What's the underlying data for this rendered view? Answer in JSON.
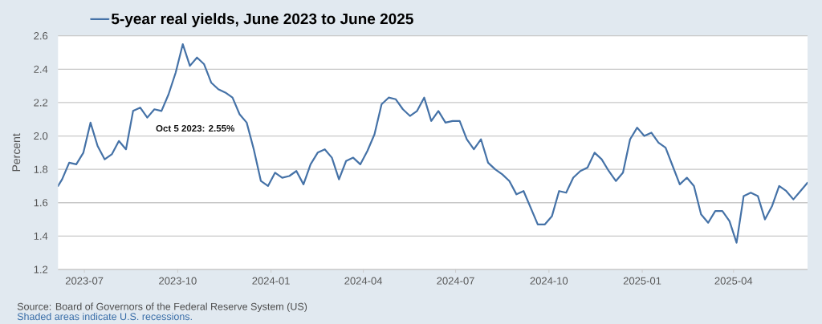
{
  "chart_data": {
    "type": "line",
    "ylabel": "Percent",
    "x": [
      "2023-06-05",
      "2023-06-09",
      "2023-06-16",
      "2023-06-23",
      "2023-06-30",
      "2023-07-07",
      "2023-07-14",
      "2023-07-21",
      "2023-07-28",
      "2023-08-04",
      "2023-08-11",
      "2023-08-18",
      "2023-08-25",
      "2023-09-01",
      "2023-09-08",
      "2023-09-15",
      "2023-09-22",
      "2023-09-29",
      "2023-10-06",
      "2023-10-13",
      "2023-10-20",
      "2023-10-27",
      "2023-11-03",
      "2023-11-10",
      "2023-11-17",
      "2023-11-24",
      "2023-12-01",
      "2023-12-08",
      "2023-12-15",
      "2023-12-22",
      "2023-12-29",
      "2024-01-05",
      "2024-01-12",
      "2024-01-19",
      "2024-01-26",
      "2024-02-02",
      "2024-02-09",
      "2024-02-16",
      "2024-02-23",
      "2024-03-01",
      "2024-03-08",
      "2024-03-15",
      "2024-03-22",
      "2024-03-29",
      "2024-04-05",
      "2024-04-12",
      "2024-04-19",
      "2024-04-26",
      "2024-05-03",
      "2024-05-10",
      "2024-05-17",
      "2024-05-24",
      "2024-05-31",
      "2024-06-07",
      "2024-06-14",
      "2024-06-21",
      "2024-06-28",
      "2024-07-05",
      "2024-07-12",
      "2024-07-19",
      "2024-07-26",
      "2024-08-02",
      "2024-08-09",
      "2024-08-16",
      "2024-08-23",
      "2024-08-30",
      "2024-09-06",
      "2024-09-13",
      "2024-09-20",
      "2024-09-27",
      "2024-10-04",
      "2024-10-11",
      "2024-10-18",
      "2024-10-25",
      "2024-11-01",
      "2024-11-08",
      "2024-11-15",
      "2024-11-22",
      "2024-11-29",
      "2024-12-06",
      "2024-12-13",
      "2024-12-20",
      "2024-12-27",
      "2025-01-03",
      "2025-01-10",
      "2025-01-17",
      "2025-01-24",
      "2025-01-31",
      "2025-02-07",
      "2025-02-14",
      "2025-02-21",
      "2025-02-28",
      "2025-03-07",
      "2025-03-14",
      "2025-03-21",
      "2025-03-28",
      "2025-04-04",
      "2025-04-11",
      "2025-04-18",
      "2025-04-25",
      "2025-05-02",
      "2025-05-09",
      "2025-05-16",
      "2025-05-23",
      "2025-05-30",
      "2025-06-06",
      "2025-06-13"
    ],
    "series": [
      {
        "name": "5-year real yields, June 2023 to June 2025",
        "color": "#4572a7",
        "values": [
          1.7,
          1.74,
          1.84,
          1.83,
          1.9,
          2.08,
          1.94,
          1.86,
          1.89,
          1.97,
          1.92,
          2.15,
          2.17,
          2.11,
          2.16,
          2.15,
          2.25,
          2.38,
          2.55,
          2.42,
          2.47,
          2.43,
          2.32,
          2.28,
          2.26,
          2.23,
          2.13,
          2.08,
          1.92,
          1.73,
          1.7,
          1.78,
          1.75,
          1.76,
          1.79,
          1.71,
          1.83,
          1.9,
          1.92,
          1.87,
          1.74,
          1.85,
          1.87,
          1.83,
          1.91,
          2.01,
          2.19,
          2.23,
          2.22,
          2.16,
          2.12,
          2.15,
          2.23,
          2.09,
          2.15,
          2.08,
          2.09,
          2.09,
          1.98,
          1.92,
          1.98,
          1.84,
          1.8,
          1.77,
          1.73,
          1.65,
          1.67,
          1.57,
          1.47,
          1.47,
          1.52,
          1.67,
          1.66,
          1.75,
          1.79,
          1.81,
          1.9,
          1.86,
          1.79,
          1.73,
          1.78,
          1.98,
          2.05,
          2.0,
          2.02,
          1.96,
          1.93,
          1.82,
          1.71,
          1.75,
          1.7,
          1.53,
          1.48,
          1.55,
          1.55,
          1.49,
          1.36,
          1.64,
          1.66,
          1.64,
          1.5,
          1.58,
          1.7,
          1.67,
          1.62,
          1.67,
          1.72
        ]
      }
    ],
    "xlim": [
      "2023-06-05",
      "2025-06-13"
    ],
    "xticks": [
      "2023-07",
      "2023-10",
      "2024-01",
      "2024-04",
      "2024-07",
      "2024-10",
      "2025-01",
      "2025-04"
    ],
    "ylim": [
      1.2,
      2.6
    ],
    "yticks": [
      1.2,
      1.4,
      1.6,
      1.8,
      {
        "value": 2,
        "label": "2.0"
      },
      2.2,
      2.4,
      2.6
    ],
    "grid": "y",
    "legend": "top left",
    "annotations": [
      "Oct 5 2023: 2.55%",
      "Source: Board of Governors of the Federal Reserve System (US)",
      "Shaded areas indicate U.S. recessions."
    ]
  }
}
